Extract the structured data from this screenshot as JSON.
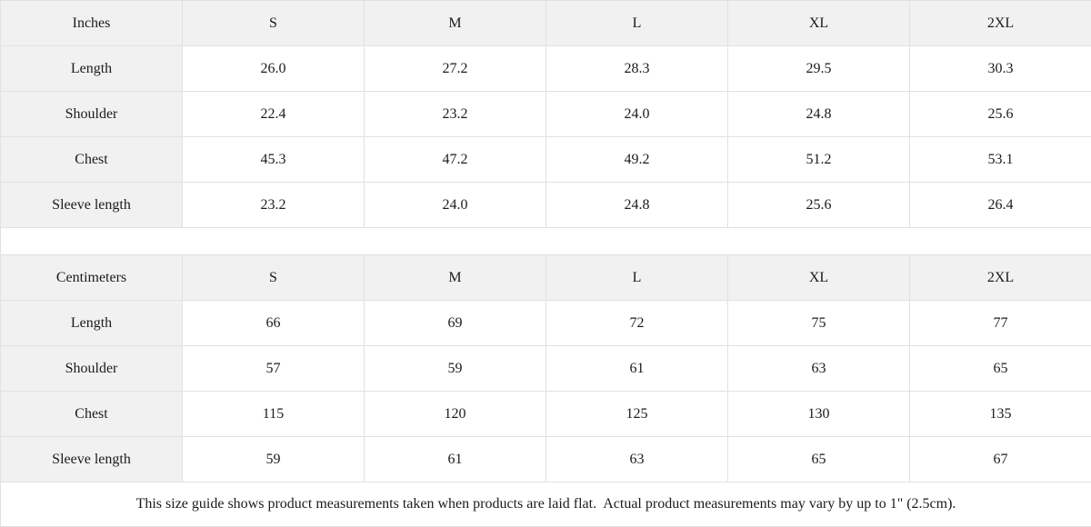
{
  "colors": {
    "header_background": "#f1f1f1",
    "cell_background": "#ffffff",
    "border": "#e1e1e1",
    "text": "#1b1b1b"
  },
  "chart_data": [
    {
      "type": "table",
      "title": "Inches",
      "columns": [
        "Inches",
        "S",
        "M",
        "L",
        "XL",
        "2XL"
      ],
      "rows": [
        [
          "Length",
          "26.0",
          "27.2",
          "28.3",
          "29.5",
          "30.3"
        ],
        [
          "Shoulder",
          "22.4",
          "23.2",
          "24.0",
          "24.8",
          "25.6"
        ],
        [
          "Chest",
          "45.3",
          "47.2",
          "49.2",
          "51.2",
          "53.1"
        ],
        [
          "Sleeve length",
          "23.2",
          "24.0",
          "24.8",
          "25.6",
          "26.4"
        ]
      ]
    },
    {
      "type": "table",
      "title": "Centimeters",
      "columns": [
        "Centimeters",
        "S",
        "M",
        "L",
        "XL",
        "2XL"
      ],
      "rows": [
        [
          "Length",
          "66",
          "69",
          "72",
          "75",
          "77"
        ],
        [
          "Shoulder",
          "57",
          "59",
          "61",
          "63",
          "65"
        ],
        [
          "Chest",
          "115",
          "120",
          "125",
          "130",
          "135"
        ],
        [
          "Sleeve length",
          "59",
          "61",
          "63",
          "65",
          "67"
        ]
      ]
    }
  ],
  "footnote": {
    "text": "This size guide shows product measurements taken when products are laid flat.  Actual product measurements may vary by up to 1\" (2.5cm)."
  }
}
